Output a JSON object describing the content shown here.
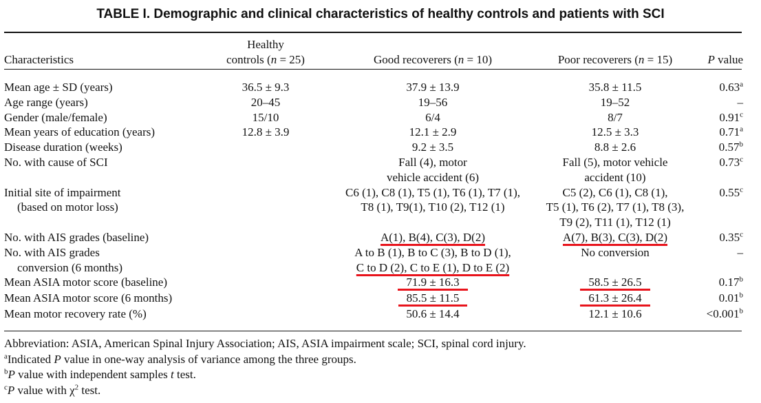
{
  "title": "TABLE I. Demographic and clinical characteristics of healthy controls and patients with SCI",
  "header": {
    "characteristics": "Characteristics",
    "healthy_line1": "Healthy",
    "healthy_line2": "controls (n = 25)",
    "good": "Good recoverers (n = 10)",
    "poor": "Poor recoverers (n = 15)",
    "pvalue": "P value"
  },
  "rows": [
    {
      "label": "Mean age ± SD (years)",
      "healthy": "36.5 ± 9.3",
      "good": "37.9 ± 13.9",
      "poor": "35.8 ± 11.5",
      "p": "0.63",
      "p_sup": "a"
    },
    {
      "label": "Age range (years)",
      "healthy": "20–45",
      "good": "19–56",
      "poor": "19–52",
      "p": "–",
      "p_sup": ""
    },
    {
      "label": "Gender (male/female)",
      "healthy": "15/10",
      "good": "6/4",
      "poor": "8/7",
      "p": "0.91",
      "p_sup": "c"
    },
    {
      "label": "Mean years of education (years)",
      "healthy": "12.8 ± 3.9",
      "good": "12.1 ± 2.9",
      "poor": "12.5 ± 3.3",
      "p": "0.71",
      "p_sup": "a"
    },
    {
      "label": "Disease duration (weeks)",
      "healthy": "",
      "good": "9.2 ± 3.5",
      "poor": "8.8 ± 2.6",
      "p": "0.57",
      "p_sup": "b"
    },
    {
      "label": "No. with cause of SCI",
      "healthy": "",
      "good": "Fall (4), motor",
      "good2": "vehicle accident (6)",
      "poor": "Fall (5), motor vehicle",
      "poor2": "accident (10)",
      "p": "0.73",
      "p_sup": "c"
    },
    {
      "label": "Initial site of impairment",
      "label2": "(based on motor loss)",
      "healthy": "",
      "good": "C6 (1), C8 (1), T5 (1), T6 (1), T7 (1),",
      "good2": "T8 (1), T9(1), T10 (2), T12 (1)",
      "poor": "C5 (2), C6 (1), C8 (1),",
      "poor2": "T5 (1), T6 (2), T7 (1), T8 (3),",
      "poor3": "T9 (2), T11 (1), T12 (1)",
      "p": "0.55",
      "p_sup": "c"
    },
    {
      "label": "No. with AIS grades (baseline)",
      "healthy": "",
      "good": "A(1), B(4), C(3), D(2)",
      "poor": "A(7), B(3), C(3), D(2)",
      "p": "0.35",
      "p_sup": "c"
    },
    {
      "label": "No. with AIS grades",
      "label2": "conversion (6 months)",
      "healthy": "",
      "good": "A to B (1), B to C (3), B to D (1),",
      "good2": "C to D (2), C to E (1), D to E (2)",
      "poor": "No conversion",
      "p": "–",
      "p_sup": ""
    },
    {
      "label": "Mean ASIA motor score (baseline)",
      "healthy": "",
      "good": "71.9 ± 16.3",
      "poor": "58.5 ± 26.5",
      "p": "0.17",
      "p_sup": "b"
    },
    {
      "label": "Mean ASIA motor score (6 months)",
      "healthy": "",
      "good": "85.5 ± 11.5",
      "poor": "61.3 ± 26.4",
      "p": "0.01",
      "p_sup": "b"
    },
    {
      "label": "Mean motor recovery rate (%)",
      "healthy": "",
      "good": "50.6 ± 14.4",
      "poor": "12.1 ± 10.6",
      "p": "<0.001",
      "p_sup": "b"
    }
  ],
  "footnotes": {
    "abbrev": "Abbreviation: ASIA, American Spinal Injury Association; AIS, ASIA impairment scale; SCI, spinal cord injury.",
    "a_mark": "a",
    "a_text_pre": "Indicated ",
    "a_text_post": " value in one-way analysis of variance among the three groups.",
    "b_mark": "b",
    "b_text": " value with independent samples ",
    "b_text_post": " test.",
    "c_mark": "c",
    "c_text": " value with χ",
    "c_sup": "2",
    "c_text_post": " test.",
    "p_letter": "P",
    "t_letter": "t"
  },
  "colors": {
    "highlight": "#e8131b",
    "text": "#111111"
  }
}
